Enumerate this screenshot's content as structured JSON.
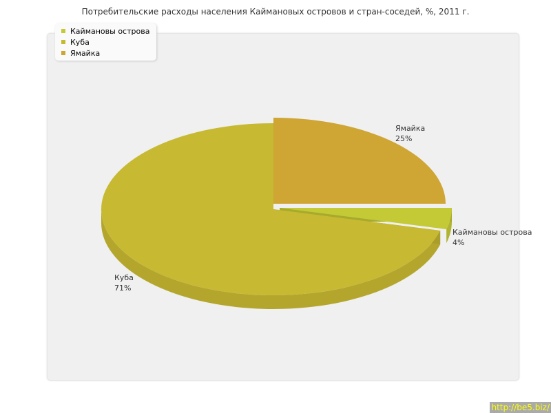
{
  "chart_data": {
    "type": "pie",
    "title": "Потребительские расходы населения Каймановых островов и стран-соседей, %, 2011 г.",
    "categories": [
      "Каймановы острова",
      "Куба",
      "Ямайка"
    ],
    "values": [
      4,
      71,
      25
    ],
    "labels": [
      "4%",
      "71%",
      "25%"
    ],
    "colors": [
      "#c4c936",
      "#c8b933",
      "#cfa533"
    ],
    "legend_placement": "top-left",
    "three_d": true
  },
  "watermark": "http://be5.biz/"
}
